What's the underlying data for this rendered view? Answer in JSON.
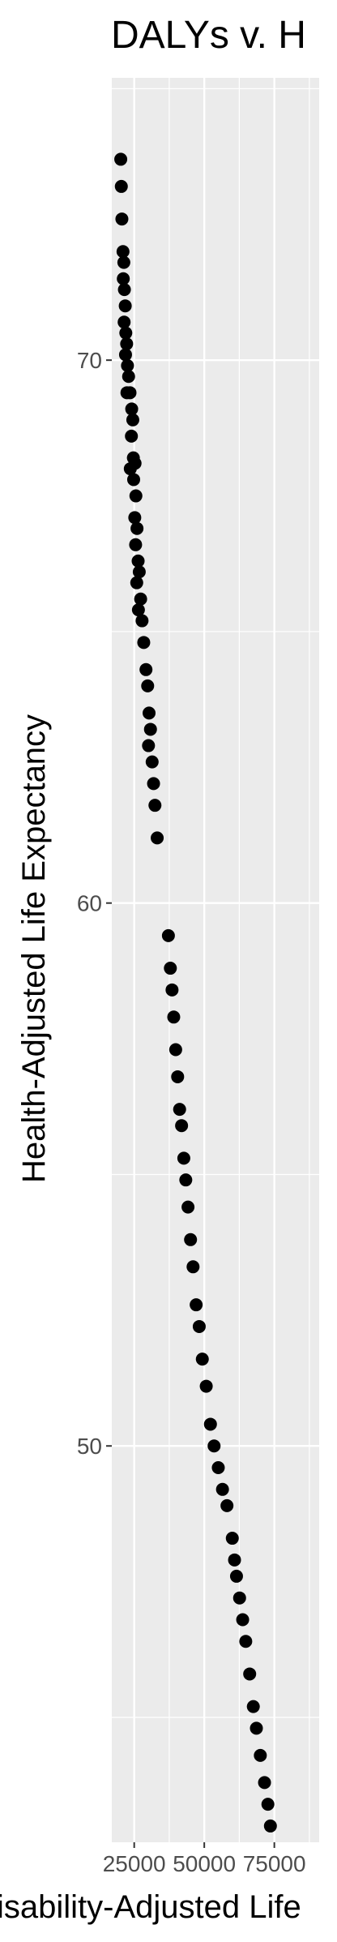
{
  "chart_data": {
    "type": "scatter",
    "title": "DALYs v. H",
    "xlabel": "isability-Adjusted Life",
    "ylabel": "Health-Adjusted Life Expectancy",
    "xlim": [
      17000,
      91000
    ],
    "ylim": [
      42.7,
      75.2
    ],
    "x_major_ticks": [
      25000,
      50000,
      75000
    ],
    "x_tick_labels": [
      "25000",
      "50000",
      "75000"
    ],
    "x_minor_ticks": [
      37500,
      62500,
      87500
    ],
    "y_major_ticks": [
      50,
      60,
      70
    ],
    "y_tick_labels": [
      "50",
      "60",
      "70"
    ],
    "y_minor_ticks": [
      45,
      55,
      65,
      75
    ],
    "point_color": "#000000",
    "panel_color": "#ebebeb",
    "points": [
      [
        20200,
        73.7
      ],
      [
        20400,
        73.2
      ],
      [
        20600,
        72.6
      ],
      [
        21000,
        72.0
      ],
      [
        21300,
        71.8
      ],
      [
        21100,
        71.5
      ],
      [
        21500,
        71.3
      ],
      [
        21800,
        71.0
      ],
      [
        21400,
        70.7
      ],
      [
        22000,
        70.5
      ],
      [
        22300,
        70.3
      ],
      [
        21900,
        70.1
      ],
      [
        22600,
        69.9
      ],
      [
        23000,
        69.7
      ],
      [
        22400,
        69.4
      ],
      [
        23500,
        69.4
      ],
      [
        24100,
        69.1
      ],
      [
        24500,
        68.9
      ],
      [
        24000,
        68.6
      ],
      [
        24700,
        68.2
      ],
      [
        23600,
        68.0
      ],
      [
        25300,
        68.1
      ],
      [
        24800,
        67.8
      ],
      [
        25600,
        67.5
      ],
      [
        25200,
        67.1
      ],
      [
        26000,
        66.9
      ],
      [
        25500,
        66.6
      ],
      [
        26400,
        66.3
      ],
      [
        26800,
        66.1
      ],
      [
        25900,
        65.9
      ],
      [
        27300,
        65.6
      ],
      [
        26500,
        65.4
      ],
      [
        27800,
        65.2
      ],
      [
        28400,
        64.8
      ],
      [
        29200,
        64.3
      ],
      [
        29800,
        64.0
      ],
      [
        30300,
        63.5
      ],
      [
        30800,
        63.2
      ],
      [
        30100,
        62.9
      ],
      [
        31400,
        62.6
      ],
      [
        31900,
        62.2
      ],
      [
        32400,
        61.8
      ],
      [
        33200,
        61.2
      ],
      [
        37200,
        59.4
      ],
      [
        37900,
        58.8
      ],
      [
        38500,
        58.4
      ],
      [
        39100,
        57.9
      ],
      [
        39800,
        57.3
      ],
      [
        40500,
        56.8
      ],
      [
        41200,
        56.2
      ],
      [
        41900,
        55.9
      ],
      [
        42700,
        55.3
      ],
      [
        43400,
        54.9
      ],
      [
        44200,
        54.4
      ],
      [
        45100,
        53.8
      ],
      [
        46000,
        53.3
      ],
      [
        47100,
        52.6
      ],
      [
        48200,
        52.2
      ],
      [
        49300,
        51.6
      ],
      [
        50700,
        51.1
      ],
      [
        52200,
        50.4
      ],
      [
        53500,
        50.0
      ],
      [
        55000,
        49.6
      ],
      [
        56500,
        49.2
      ],
      [
        58100,
        48.9
      ],
      [
        60000,
        48.3
      ],
      [
        60800,
        47.9
      ],
      [
        61500,
        47.6
      ],
      [
        62600,
        47.2
      ],
      [
        63700,
        46.8
      ],
      [
        64800,
        46.4
      ],
      [
        66200,
        45.8
      ],
      [
        67500,
        45.2
      ],
      [
        68600,
        44.8
      ],
      [
        70000,
        44.3
      ],
      [
        71500,
        43.8
      ],
      [
        72700,
        43.4
      ],
      [
        73600,
        43.0
      ]
    ]
  }
}
